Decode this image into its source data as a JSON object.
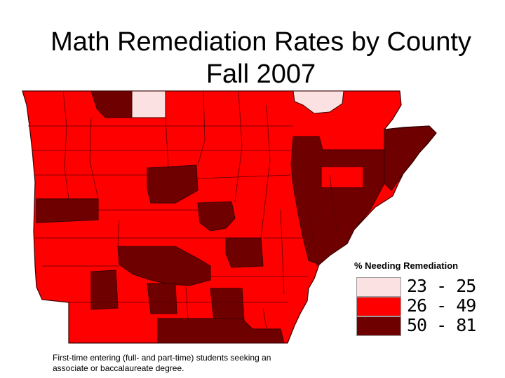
{
  "title": {
    "line1": "Math Remediation Rates by County",
    "line2": "Fall 2007"
  },
  "legend": {
    "title": "% Needing Remediation",
    "items": [
      {
        "label": "23 - 25",
        "color": "#fbe1e1"
      },
      {
        "label": "26 - 49",
        "color": "#ff0000"
      },
      {
        "label": "50 - 81",
        "color": "#6e0000"
      }
    ]
  },
  "footnote": "First-time entering (full- and part-time) students seeking an associate or baccalaureate degree."
}
